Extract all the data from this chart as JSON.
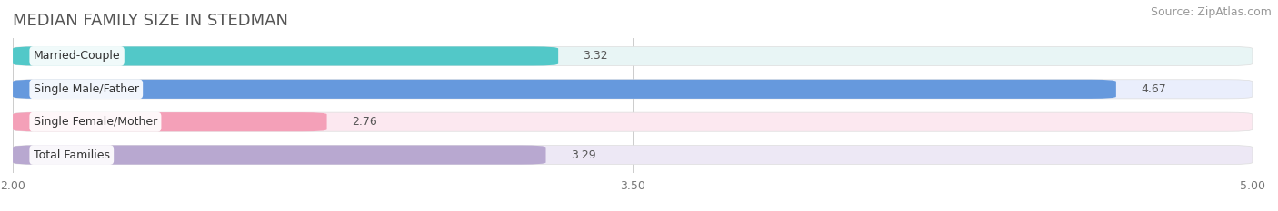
{
  "title": "MEDIAN FAMILY SIZE IN STEDMAN",
  "source": "Source: ZipAtlas.com",
  "categories": [
    "Married-Couple",
    "Single Male/Father",
    "Single Female/Mother",
    "Total Families"
  ],
  "values": [
    3.32,
    4.67,
    2.76,
    3.29
  ],
  "bar_colors": [
    "#52c8c8",
    "#6699dd",
    "#f4a0b8",
    "#b8a8d0"
  ],
  "bar_bg_colors": [
    "#e8f5f5",
    "#eaeefc",
    "#fce8f0",
    "#ede8f5"
  ],
  "xmin": 2.0,
  "xmax": 5.0,
  "xticks": [
    2.0,
    3.5,
    5.0
  ],
  "title_fontsize": 13,
  "source_fontsize": 9,
  "label_fontsize": 9,
  "value_fontsize": 9,
  "bar_height": 0.58,
  "background_color": "#ffffff",
  "value_inside_threshold": 4.8
}
